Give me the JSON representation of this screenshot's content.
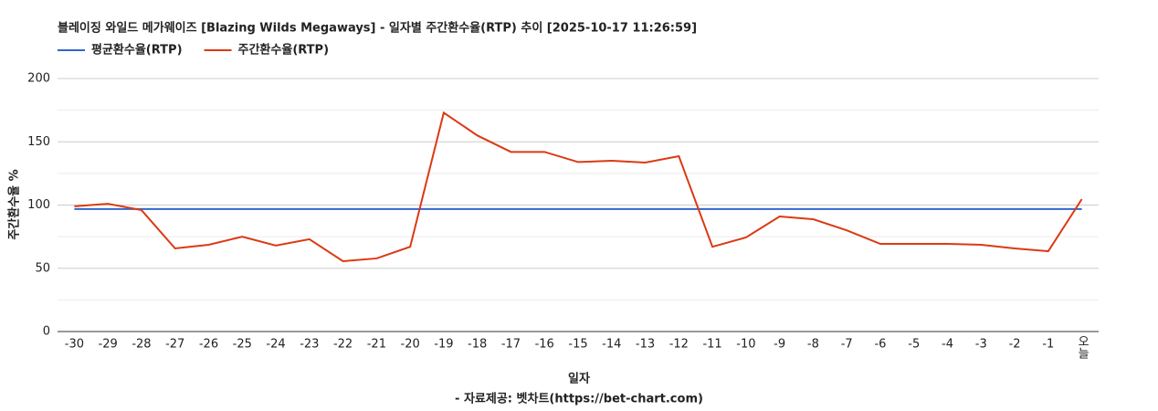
{
  "chart_data": {
    "type": "line",
    "title": "블레이징 와일드 메가웨이즈 [Blazing Wilds Megaways] - 일자별 주간환수율(RTP) 추이 [2025-10-17 11:26:59]",
    "x_label": "일자",
    "y_label": "주간환수율 %",
    "source": "- 자료제공: 벳차트(https://bet-chart.com)",
    "categories": [
      "-30",
      "-29",
      "-28",
      "-27",
      "-26",
      "-25",
      "-24",
      "-23",
      "-22",
      "-21",
      "-20",
      "-19",
      "-18",
      "-17",
      "-16",
      "-15",
      "-14",
      "-13",
      "-12",
      "-11",
      "-10",
      "-9",
      "-8",
      "-7",
      "-6",
      "-5",
      "-4",
      "-3",
      "-2",
      "-1",
      "오늘"
    ],
    "series": [
      {
        "name": "평균환수율(RTP)",
        "color": "#3366cc",
        "values": [
          96.8,
          96.8,
          96.8,
          96.8,
          96.8,
          96.8,
          96.8,
          96.8,
          96.8,
          96.8,
          96.8,
          96.8,
          96.8,
          96.8,
          96.8,
          96.8,
          96.8,
          96.8,
          96.8,
          96.8,
          96.8,
          96.8,
          96.8,
          96.8,
          96.8,
          96.8,
          96.8,
          96.8,
          96.8,
          96.8,
          96.8
        ]
      },
      {
        "name": "주간환수율(RTP)",
        "color": "#dc3912",
        "values": [
          99,
          101,
          96,
          65.7,
          68.6,
          75,
          68,
          73,
          55.6,
          57.8,
          67,
          173,
          155,
          142,
          142,
          134,
          135,
          133.6,
          138.6,
          67,
          74.4,
          91,
          88.8,
          80,
          69.3,
          69.3,
          69.3,
          68.6,
          65.7,
          63.5,
          104.7
        ]
      }
    ],
    "ylim": [
      0,
      200
    ],
    "yticks": [
      0,
      50,
      100,
      150,
      200
    ],
    "minor_yticks": [
      25,
      75,
      125,
      175
    ],
    "grid": true,
    "legend": "top"
  }
}
